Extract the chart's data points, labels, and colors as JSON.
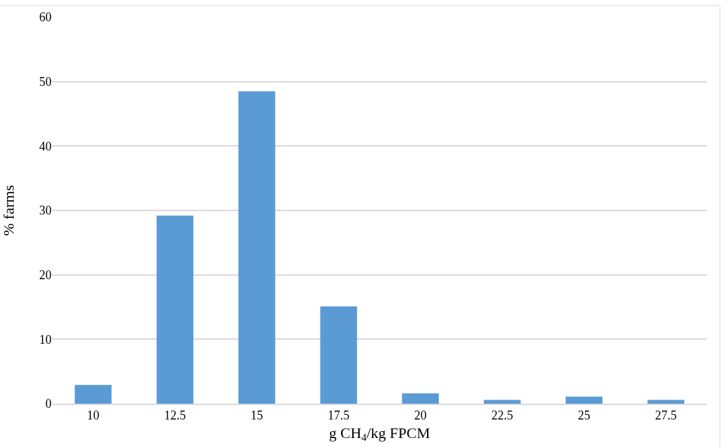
{
  "chart_data": {
    "type": "bar",
    "xlabel": "g CH$_{4}$/kg FPCM",
    "ylabel": "% farms",
    "categories": [
      "10",
      "12.5",
      "15",
      "17.5",
      "20",
      "22.5",
      "25",
      "27.5"
    ],
    "values": [
      2.9,
      29.2,
      48.5,
      15.1,
      1.6,
      0.6,
      1.1,
      0.6
    ],
    "color": "#5b9bd5",
    "ylim": [
      0,
      60
    ],
    "yticks": [
      0,
      10,
      20,
      30,
      40,
      50,
      60
    ],
    "grid": "y"
  }
}
